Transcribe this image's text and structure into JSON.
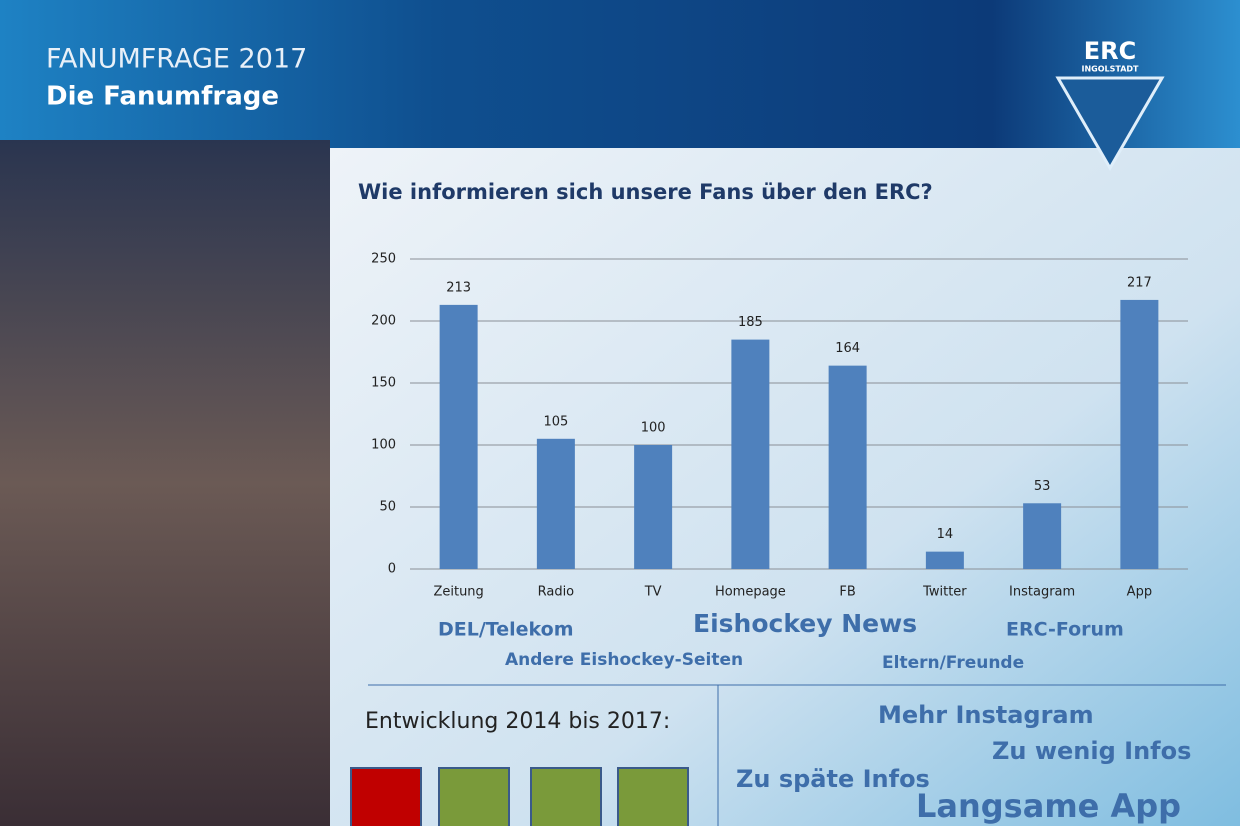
{
  "header": {
    "title": "FANUMFRAGE 2017",
    "subtitle": "Die Fanumfrage"
  },
  "logo": {
    "name": "ERC",
    "city": "INGOLSTADT"
  },
  "chart_data": {
    "type": "bar",
    "title": "Wie informieren sich unsere Fans über den ERC?",
    "categories": [
      "Zeitung",
      "Radio",
      "TV",
      "Homepage",
      "FB",
      "Twitter",
      "Instagram",
      "App"
    ],
    "values": [
      213,
      105,
      100,
      185,
      164,
      14,
      53,
      217
    ],
    "color": "#4f81bd",
    "ylim": [
      0,
      250
    ],
    "yticks": [
      0,
      50,
      100,
      150,
      200,
      250
    ],
    "grid": true
  },
  "other_sources": [
    "DEL/Telekom",
    "Eishockey News",
    "ERC-Forum",
    "Andere Eishockey-Seiten",
    "Eltern/Freunde"
  ],
  "development": {
    "label": "Entwicklung 2014 bis 2017:"
  },
  "feedback": [
    "Mehr Instagram",
    "Zu wenig Infos",
    "Zu späte Infos",
    "Langsame App"
  ]
}
